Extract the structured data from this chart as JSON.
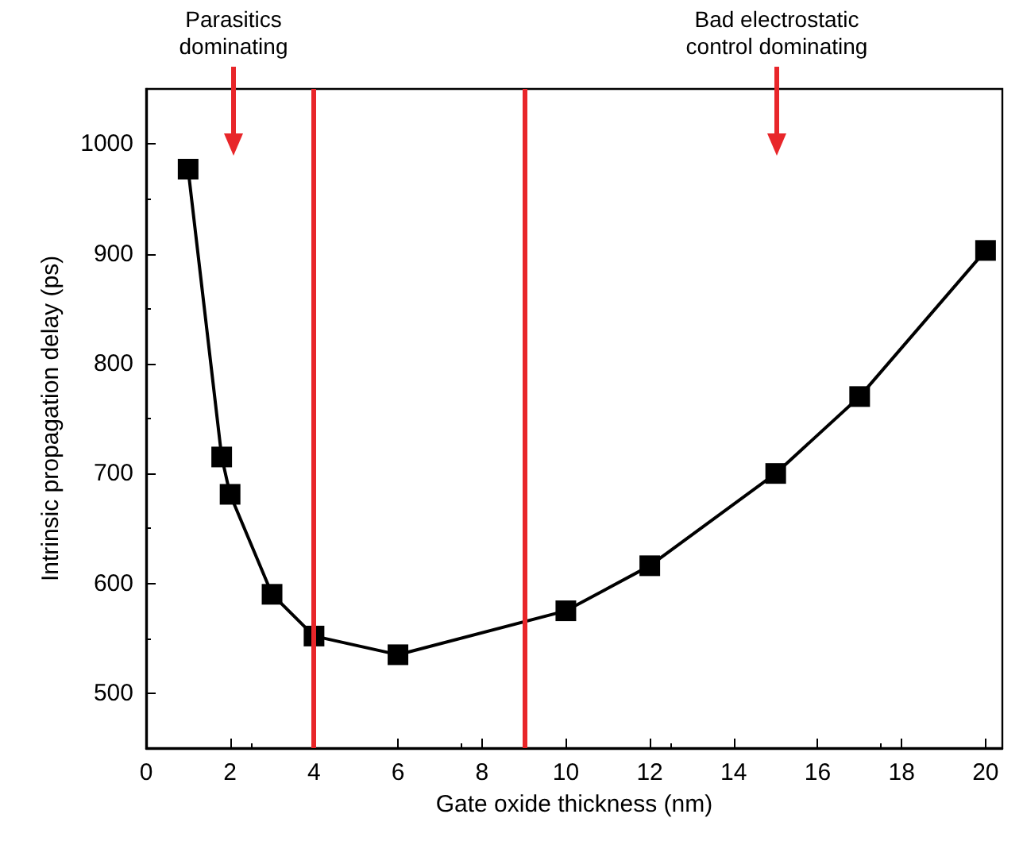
{
  "chart_data": {
    "type": "line",
    "xlabel": "Gate oxide thickness (nm)",
    "ylabel": "Intrinsic propagation delay (ps)",
    "x": [
      1,
      1.8,
      2,
      3,
      4,
      6,
      10,
      12,
      15,
      17,
      20
    ],
    "series": [
      {
        "color": "#000000",
        "values": [
          977,
          715,
          681,
          590,
          552,
          535,
          575,
          616,
          700,
          770,
          903
        ]
      }
    ],
    "marker": "square",
    "line_style": "solid",
    "xlim": [
      0,
      20.4
    ],
    "xticks": [
      0,
      2,
      4,
      6,
      8,
      10,
      12,
      14,
      16,
      18,
      20
    ],
    "ylim": [
      450,
      1050
    ],
    "yticks": [
      500,
      600,
      700,
      800,
      900,
      1000
    ],
    "ref_lines": [
      {
        "axis": "x",
        "value": 4,
        "color": "#e8262a"
      },
      {
        "axis": "x",
        "value": 9,
        "color": "#e8262a"
      }
    ],
    "annotations": [
      "Parasitics\ndominating",
      "Bad electrostatic\ncontrol dominating"
    ]
  }
}
